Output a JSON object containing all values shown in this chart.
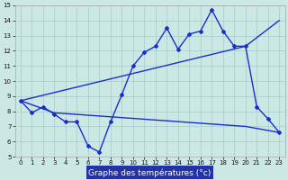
{
  "title": "Graphe des températures (°c)",
  "bg_color": "#cce8e4",
  "grid_color": "#aacfca",
  "line_color": "#1a2ecc",
  "xlabel_bg": "#2233aa",
  "xlabel_fg": "#ffffff",
  "xlim": [
    -0.5,
    23.5
  ],
  "ylim": [
    5,
    15
  ],
  "xticks": [
    0,
    1,
    2,
    3,
    4,
    5,
    6,
    7,
    8,
    9,
    10,
    11,
    12,
    13,
    14,
    15,
    16,
    17,
    18,
    19,
    20,
    21,
    22,
    23
  ],
  "yticks": [
    5,
    6,
    7,
    8,
    9,
    10,
    11,
    12,
    13,
    14,
    15
  ],
  "series1_x": [
    0,
    1,
    2,
    3,
    4,
    5,
    6,
    7,
    8,
    9,
    10,
    11,
    12,
    13,
    14,
    15,
    16,
    17,
    18,
    19,
    20,
    21,
    22,
    23
  ],
  "series1_y": [
    8.7,
    7.9,
    8.3,
    7.8,
    7.3,
    7.3,
    5.7,
    5.3,
    7.3,
    9.1,
    11.0,
    11.9,
    12.3,
    13.5,
    12.1,
    13.1,
    13.3,
    14.7,
    13.3,
    12.3,
    12.3,
    8.3,
    7.5,
    6.6
  ],
  "series2_x": [
    0,
    20,
    23
  ],
  "series2_y": [
    8.7,
    12.3,
    14.0
  ],
  "series3_x": [
    0,
    3,
    20,
    23
  ],
  "series3_y": [
    8.7,
    7.9,
    7.0,
    6.6
  ],
  "tick_fontsize": 5.0,
  "label_fontsize": 6.5
}
